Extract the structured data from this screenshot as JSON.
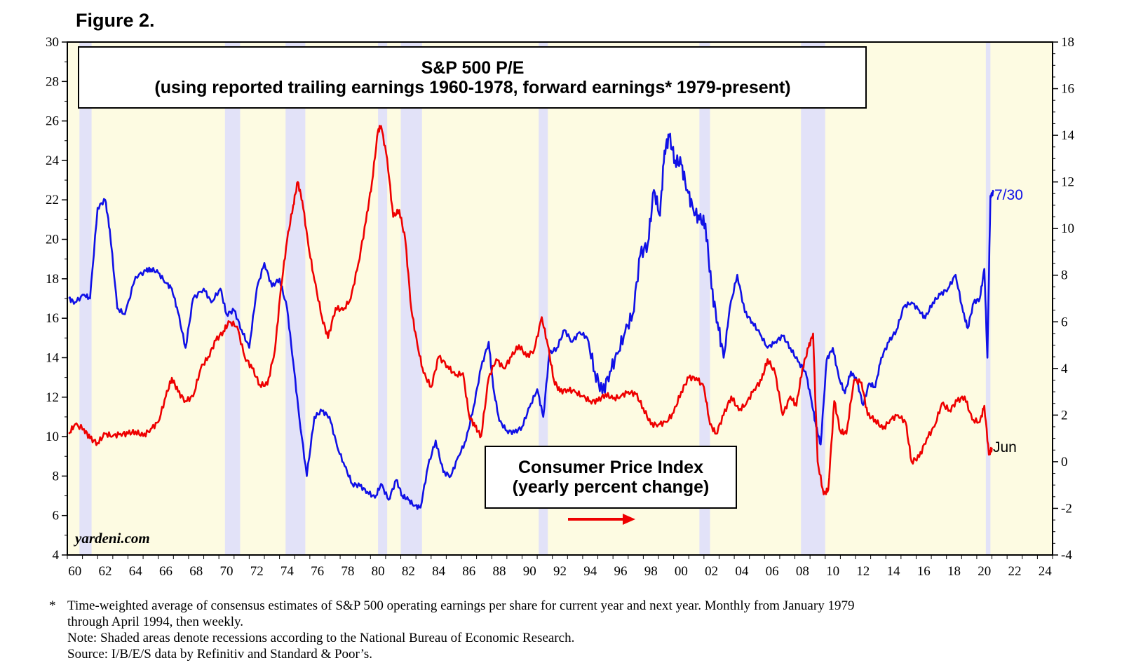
{
  "figure_label": "Figure 2.",
  "chart_data": {
    "type": "line",
    "title_line1": "S&P 500 P/E",
    "title_line2": "(using reported trailing earnings 1960-1978, forward earnings* 1979-present)",
    "inset_label_line1": "Consumer Price Index",
    "inset_label_line2": "(yearly percent change)",
    "watermark": "yardeni.com",
    "x_ticks": [
      "60",
      "62",
      "64",
      "66",
      "68",
      "70",
      "72",
      "74",
      "76",
      "78",
      "80",
      "82",
      "84",
      "86",
      "88",
      "90",
      "92",
      "94",
      "96",
      "98",
      "00",
      "02",
      "04",
      "06",
      "08",
      "10",
      "12",
      "14",
      "16",
      "18",
      "20",
      "22",
      "24"
    ],
    "xlim": [
      1959.5,
      2024.5
    ],
    "left_axis": {
      "label": "S&P 500 P/E",
      "ylim": [
        4,
        30
      ],
      "ticks": [
        4,
        6,
        8,
        10,
        12,
        14,
        16,
        18,
        20,
        22,
        24,
        26,
        28,
        30
      ]
    },
    "right_axis": {
      "label": "CPI yearly percent change",
      "ylim": [
        -4,
        18
      ],
      "ticks": [
        -4,
        -2,
        0,
        2,
        4,
        6,
        8,
        10,
        12,
        14,
        16,
        18
      ]
    },
    "recessions": [
      [
        1960.3,
        1961.1
      ],
      [
        1969.9,
        1970.9
      ],
      [
        1973.9,
        1975.2
      ],
      [
        1980.0,
        1980.6
      ],
      [
        1981.5,
        1982.9
      ],
      [
        1990.6,
        1991.2
      ],
      [
        2001.2,
        2001.9
      ],
      [
        2007.9,
        2009.5
      ],
      [
        2020.1,
        2020.4
      ]
    ],
    "series": [
      {
        "name": "S&P 500 P/E",
        "axis": "left",
        "color": "#1010e6",
        "end_label": "7/30",
        "x": [
          1959.6,
          1960.0,
          1960.6,
          1961.0,
          1961.5,
          1962.0,
          1962.3,
          1962.8,
          1963.3,
          1964.0,
          1964.7,
          1965.0,
          1965.5,
          1966.0,
          1966.4,
          1966.8,
          1967.3,
          1967.8,
          1968.5,
          1969.0,
          1969.6,
          1970.0,
          1970.5,
          1971.0,
          1971.5,
          1972.0,
          1972.5,
          1973.0,
          1973.5,
          1974.0,
          1974.4,
          1974.8,
          1975.3,
          1975.8,
          1976.3,
          1976.8,
          1977.3,
          1977.8,
          1978.3,
          1978.8,
          1979.3,
          1979.8,
          1980.2,
          1980.7,
          1981.2,
          1981.6,
          1982.0,
          1982.4,
          1982.8,
          1983.3,
          1983.8,
          1984.3,
          1984.8,
          1985.3,
          1985.8,
          1986.3,
          1986.8,
          1987.3,
          1987.6,
          1988.0,
          1988.5,
          1989.0,
          1989.5,
          1990.0,
          1990.5,
          1990.9,
          1991.3,
          1991.8,
          1992.3,
          1992.8,
          1993.3,
          1993.8,
          1994.3,
          1994.8,
          1995.3,
          1995.8,
          1996.3,
          1996.8,
          1997.3,
          1997.8,
          1998.2,
          1998.6,
          1998.9,
          1999.2,
          1999.6,
          2000.0,
          2000.4,
          2000.8,
          2001.2,
          2001.6,
          2002.0,
          2002.4,
          2002.8,
          2003.2,
          2003.7,
          2004.2,
          2004.7,
          2005.2,
          2005.7,
          2006.2,
          2006.7,
          2007.2,
          2007.7,
          2008.2,
          2008.6,
          2008.9,
          2009.2,
          2009.6,
          2010.0,
          2010.4,
          2010.8,
          2011.2,
          2011.6,
          2012.0,
          2012.4,
          2012.8,
          2013.2,
          2013.7,
          2014.2,
          2014.7,
          2015.2,
          2015.7,
          2016.1,
          2016.6,
          2017.1,
          2017.6,
          2018.1,
          2018.6,
          2018.9,
          2019.3,
          2019.7,
          2020.0,
          2020.2,
          2020.4,
          2020.6
        ],
        "y": [
          17.0,
          16.8,
          17.2,
          17.0,
          21.6,
          22.0,
          20.5,
          16.5,
          16.2,
          18.1,
          18.4,
          18.5,
          18.3,
          17.8,
          17.5,
          16.3,
          14.5,
          17.0,
          17.5,
          16.8,
          17.5,
          16.2,
          16.4,
          15.4,
          14.5,
          17.5,
          18.8,
          17.6,
          18.0,
          16.5,
          13.8,
          11.0,
          8.0,
          11.0,
          11.3,
          11.0,
          9.5,
          8.5,
          7.6,
          7.5,
          7.2,
          6.9,
          7.6,
          6.8,
          7.8,
          7.0,
          6.8,
          6.5,
          6.4,
          8.5,
          9.8,
          8.2,
          8.0,
          9.0,
          9.8,
          11.5,
          13.5,
          14.8,
          12.5,
          10.8,
          10.3,
          10.2,
          10.5,
          11.5,
          12.4,
          11.0,
          14.2,
          14.5,
          15.4,
          14.8,
          15.3,
          15.0,
          13.3,
          12.2,
          13.3,
          14.2,
          15.3,
          16.2,
          19.2,
          19.8,
          22.5,
          21.2,
          24.5,
          25.2,
          24.0,
          23.8,
          22.5,
          21.5,
          21.0,
          20.8,
          17.5,
          15.8,
          14.0,
          16.5,
          18.2,
          16.3,
          15.8,
          15.2,
          14.5,
          14.8,
          15.1,
          14.5,
          13.8,
          13.3,
          11.8,
          10.5,
          9.6,
          13.9,
          14.5,
          13.0,
          12.2,
          13.3,
          12.8,
          11.6,
          12.7,
          12.5,
          14.0,
          14.8,
          15.4,
          16.6,
          16.8,
          16.4,
          16.0,
          16.8,
          17.2,
          17.5,
          18.2,
          16.3,
          15.5,
          16.8,
          17.0,
          18.5,
          14.0,
          22.2,
          22.4
        ]
      },
      {
        "name": "Consumer Price Index",
        "axis": "right",
        "color": "#ee0000",
        "end_label": "Jun",
        "x": [
          1959.6,
          1960.0,
          1960.6,
          1961.0,
          1961.5,
          1962.0,
          1962.5,
          1963.0,
          1963.5,
          1964.0,
          1964.5,
          1965.0,
          1965.5,
          1966.0,
          1966.4,
          1966.8,
          1967.3,
          1967.8,
          1968.3,
          1968.8,
          1969.3,
          1969.8,
          1970.2,
          1970.7,
          1971.2,
          1971.7,
          1972.2,
          1972.7,
          1973.2,
          1973.6,
          1974.0,
          1974.4,
          1974.7,
          1975.0,
          1975.4,
          1975.8,
          1976.3,
          1976.7,
          1977.2,
          1977.7,
          1978.2,
          1978.7,
          1979.2,
          1979.6,
          1980.0,
          1980.2,
          1980.6,
          1981.0,
          1981.4,
          1981.8,
          1982.2,
          1982.6,
          1983.0,
          1983.5,
          1984.0,
          1984.6,
          1985.1,
          1985.6,
          1986.0,
          1986.4,
          1986.8,
          1987.3,
          1987.8,
          1988.3,
          1988.8,
          1989.3,
          1989.8,
          1990.3,
          1990.8,
          1991.2,
          1991.6,
          1992.0,
          1992.5,
          1993.0,
          1993.5,
          1994.0,
          1994.5,
          1995.0,
          1995.5,
          1996.0,
          1996.5,
          1997.0,
          1997.5,
          1998.0,
          1998.5,
          1999.0,
          1999.5,
          2000.0,
          2000.5,
          2001.0,
          2001.5,
          2001.9,
          2002.3,
          2002.8,
          2003.3,
          2003.8,
          2004.3,
          2004.8,
          2005.3,
          2005.7,
          2006.2,
          2006.7,
          2007.2,
          2007.6,
          2008.0,
          2008.4,
          2008.7,
          2009.0,
          2009.4,
          2009.7,
          2010.1,
          2010.5,
          2010.9,
          2011.4,
          2011.9,
          2012.3,
          2012.8,
          2013.3,
          2013.8,
          2014.3,
          2014.8,
          2015.2,
          2015.7,
          2016.2,
          2016.7,
          2017.2,
          2017.7,
          2018.2,
          2018.7,
          2019.2,
          2019.7,
          2020.0,
          2020.3,
          2020.5
        ],
        "y": [
          1.2,
          1.6,
          1.4,
          1.0,
          0.8,
          1.2,
          1.1,
          1.2,
          1.2,
          1.3,
          1.1,
          1.4,
          1.7,
          2.8,
          3.6,
          3.0,
          2.6,
          2.8,
          4.0,
          4.5,
          5.2,
          5.6,
          6.0,
          5.8,
          4.5,
          4.0,
          3.3,
          3.3,
          4.8,
          7.5,
          9.5,
          11.0,
          12.0,
          11.2,
          9.3,
          7.8,
          6.2,
          5.3,
          6.6,
          6.5,
          7.0,
          8.5,
          10.3,
          12.0,
          14.2,
          14.4,
          13.0,
          10.5,
          10.8,
          9.5,
          6.5,
          5.0,
          3.8,
          3.2,
          4.5,
          4.1,
          3.7,
          3.8,
          2.0,
          1.5,
          1.1,
          3.6,
          4.4,
          4.0,
          4.5,
          5.0,
          4.5,
          4.8,
          6.2,
          5.0,
          3.5,
          3.0,
          3.1,
          3.0,
          2.8,
          2.6,
          2.6,
          2.9,
          2.7,
          2.8,
          3.0,
          2.9,
          2.3,
          1.6,
          1.6,
          1.7,
          2.1,
          3.0,
          3.6,
          3.6,
          3.2,
          1.6,
          1.2,
          2.0,
          2.8,
          2.2,
          2.5,
          3.1,
          3.5,
          4.4,
          3.8,
          2.0,
          2.8,
          2.4,
          4.0,
          4.9,
          5.5,
          0.0,
          -1.4,
          -1.2,
          2.6,
          1.3,
          1.2,
          3.5,
          3.4,
          2.0,
          1.8,
          1.4,
          1.8,
          2.0,
          1.7,
          0.0,
          0.2,
          1.0,
          1.5,
          2.5,
          2.2,
          2.6,
          2.8,
          1.8,
          1.7,
          2.4,
          0.3,
          0.6
        ]
      }
    ]
  },
  "notes": {
    "asterisk": "*",
    "footnote_line1": "Time-weighted average of consensus estimates of S&P 500 operating earnings per share for current year and next year. Monthly from January 1979",
    "footnote_line2": "through April 1994, then weekly.",
    "note": "Note: Shaded areas denote recessions according to the National Bureau of Economic Research.",
    "source": "Source: I/B/E/S data by Refinitiv and Standard & Poor’s."
  }
}
